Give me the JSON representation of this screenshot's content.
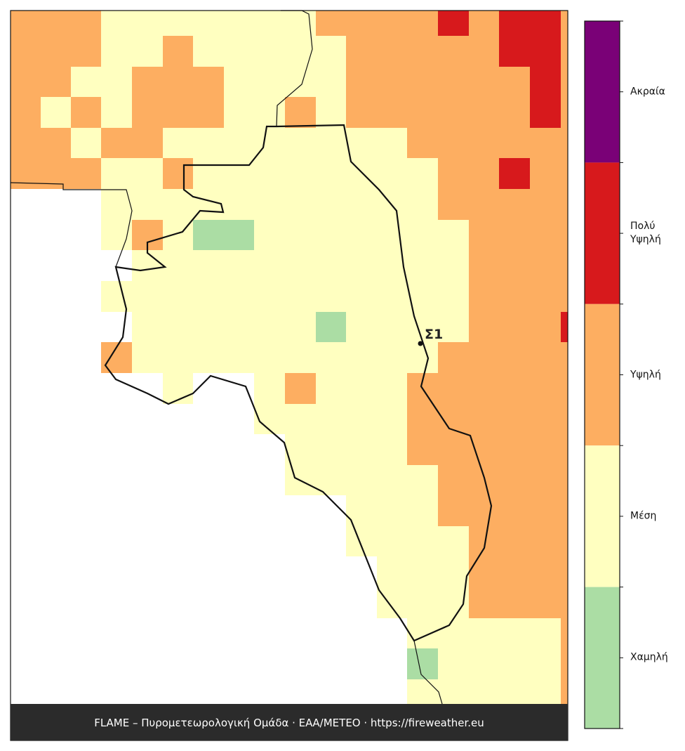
{
  "legend": {
    "levels": [
      {
        "label": "Ακραία",
        "color": "#7a0177"
      },
      {
        "label": "Πολύ Υψηλή",
        "color": "#d7191c"
      },
      {
        "label": "Υψηλή",
        "color": "#fdae61"
      },
      {
        "label": "Μέση",
        "color": "#ffffc0"
      },
      {
        "label": "Χαμηλή",
        "color": "#abdda4"
      }
    ]
  },
  "marker": {
    "label": "Σ1"
  },
  "footer": "FLAME – Πυρομετεωρολογική Ομάδα · ΕΑΑ/METEO · https://fireweather.eu"
}
